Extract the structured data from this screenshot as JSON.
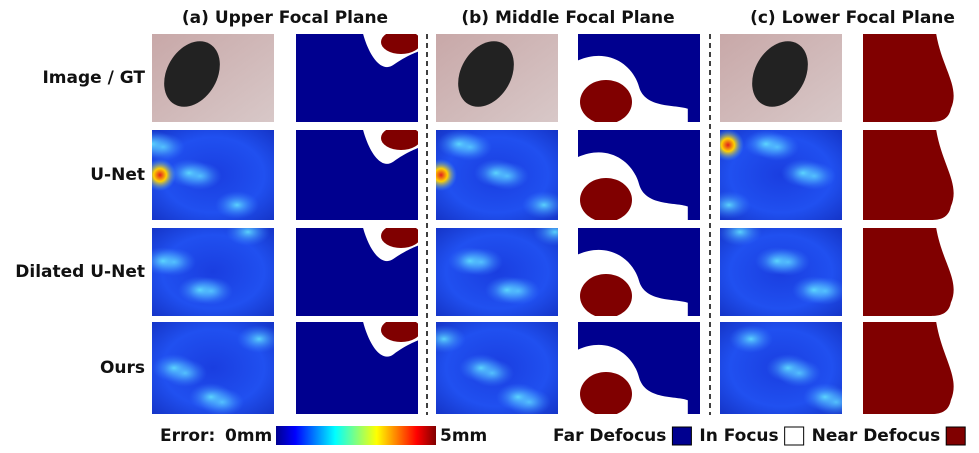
{
  "columns": [
    {
      "title": "(a) Upper Focal Plane"
    },
    {
      "title": "(b) Middle Focal Plane"
    },
    {
      "title": "(c) Lower Focal Plane"
    }
  ],
  "rows": [
    {
      "label": "Image / GT"
    },
    {
      "label": "U-Net"
    },
    {
      "label": "Dilated U-Net"
    },
    {
      "label": "Ours"
    }
  ],
  "colorbar": {
    "label": "Error:",
    "min_label": "0mm",
    "max_label": "5mm"
  },
  "legend": [
    {
      "name": "Far Defocus",
      "color": "#00008f"
    },
    {
      "name": "In Focus",
      "color": "#ffffff"
    },
    {
      "name": "Near Defocus",
      "color": "#800000"
    }
  ]
}
